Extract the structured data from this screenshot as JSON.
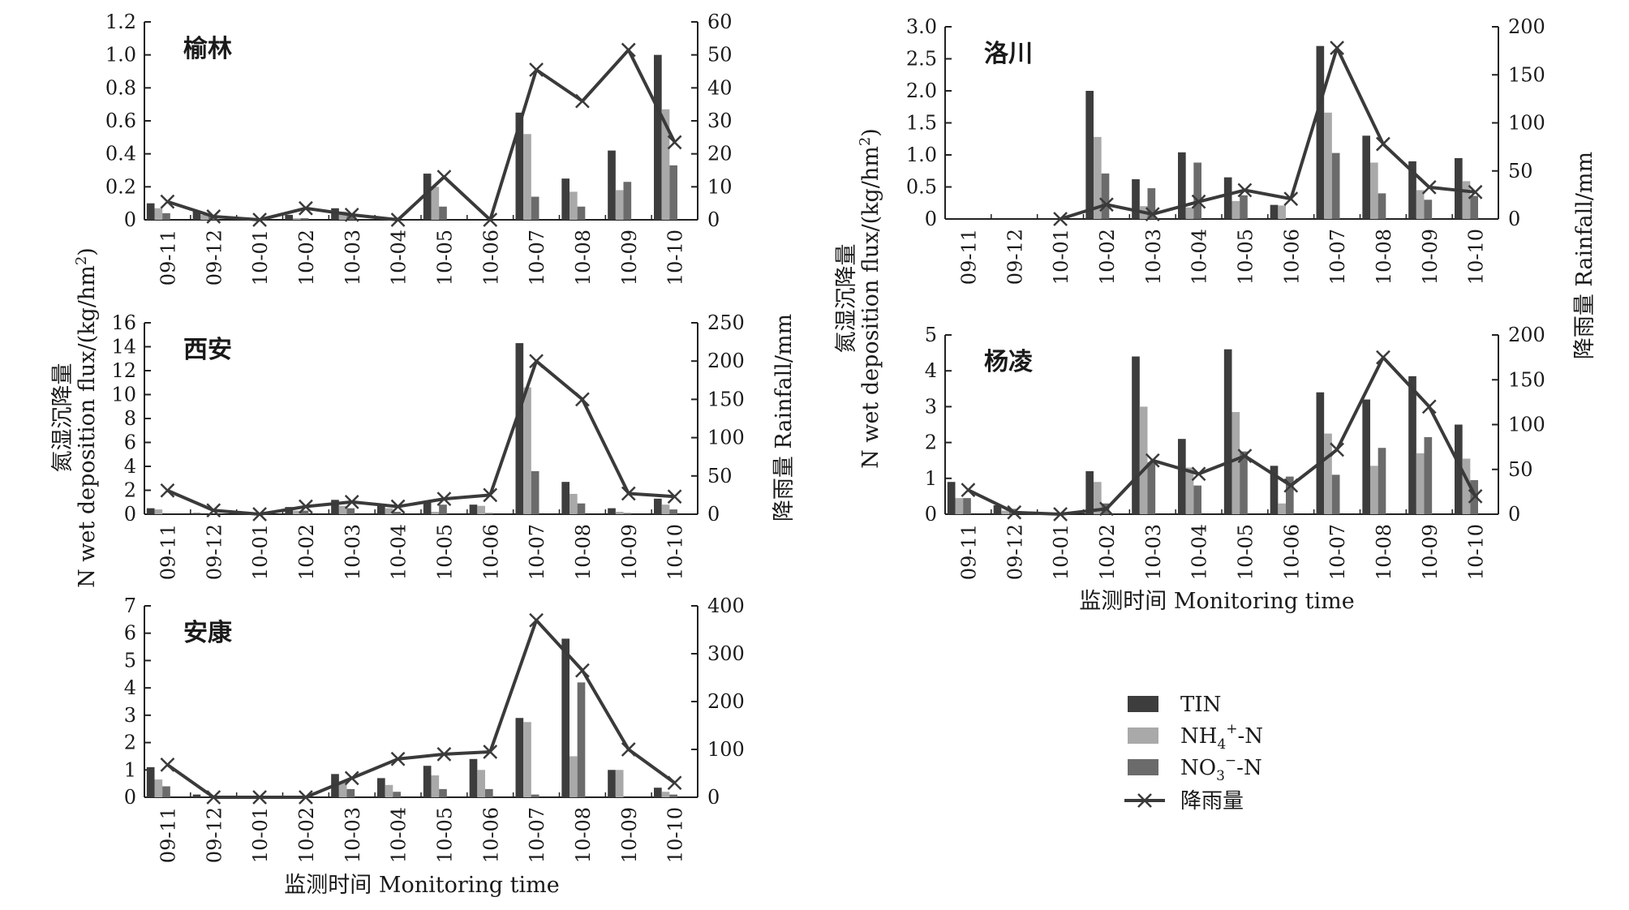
{
  "chart_data": {
    "type": "bar",
    "categories": [
      "09-11",
      "09-12",
      "10-01",
      "10-02",
      "10-03",
      "10-04",
      "10-05",
      "10-06",
      "10-07",
      "10-08",
      "10-09",
      "10-10"
    ],
    "series_names": [
      "TIN",
      "NH4+-N",
      "NO3−-N",
      "降雨量"
    ],
    "colors": {
      "TIN": "#3d3d3d",
      "NH4": "#a9a9a9",
      "NO3": "#6b6b6b",
      "rain": "#3a3a3a"
    },
    "xlabel": "监测时间 Monitoring time",
    "ylabel_left_cn": "氮湿沉降量",
    "ylabel_left_en": "N wet deposition flux/(kg/hm",
    "ylabel_left_sup": "2",
    "ylabel_left_close": ")",
    "ylabel_right": "降雨量 Rainfall/mm",
    "legend": {
      "tin": "TIN",
      "nh4_pre": "NH",
      "nh4_sub": "4",
      "nh4_sup": "+",
      "nh4_post": "-N",
      "no3_pre": "NO",
      "no3_sub": "3",
      "no3_sup": "−",
      "no3_post": "-N",
      "rain": "降雨量"
    },
    "charts": [
      {
        "id": "yulin",
        "title": "榆林",
        "left_axis": {
          "min": 0,
          "max": 1.2,
          "ticks": [
            "0",
            "0.2",
            "0.4",
            "0.6",
            "0.8",
            "1.0",
            "1.2"
          ]
        },
        "right_axis": {
          "min": 0,
          "max": 60,
          "ticks": [
            "0",
            "10",
            "20",
            "30",
            "40",
            "50",
            "60"
          ]
        },
        "series": [
          {
            "name": "TIN",
            "values": [
              0.1,
              0.05,
              0,
              0.03,
              0.07,
              0,
              0.28,
              0,
              0.65,
              0.25,
              0.42,
              1.0
            ]
          },
          {
            "name": "NH4+-N",
            "values": [
              0.07,
              0.03,
              0,
              0.01,
              0.05,
              0,
              0.2,
              0,
              0.52,
              0.17,
              0.18,
              0.67
            ]
          },
          {
            "name": "NO3−-N",
            "values": [
              0.04,
              0.03,
              0,
              0.01,
              0.03,
              0,
              0.08,
              0,
              0.14,
              0.08,
              0.23,
              0.33
            ]
          },
          {
            "name": "降雨量",
            "values": [
              5.5,
              1,
              0,
              3.5,
              1.5,
              0,
              13,
              0,
              45.5,
              36,
              51.5,
              23.5
            ]
          }
        ]
      },
      {
        "id": "luochuan",
        "title": "洛川",
        "left_axis": {
          "min": 0,
          "max": 3.0,
          "ticks": [
            "0",
            "0.5",
            "1.0",
            "1.5",
            "2.0",
            "2.5",
            "3.0"
          ]
        },
        "right_axis": {
          "min": 0,
          "max": 200,
          "ticks": [
            "0",
            "50",
            "100",
            "150",
            "200"
          ]
        },
        "series": [
          {
            "name": "TIN",
            "values": [
              null,
              null,
              null,
              2.0,
              0.62,
              1.04,
              0.65,
              0.22,
              2.7,
              1.3,
              0.9,
              0.95
            ]
          },
          {
            "name": "NH4+-N",
            "values": [
              null,
              null,
              null,
              1.28,
              0.2,
              0.18,
              0.28,
              0.21,
              1.66,
              0.88,
              0.45,
              0.59
            ]
          },
          {
            "name": "NO3−-N",
            "values": [
              null,
              null,
              null,
              0.71,
              0.48,
              0.88,
              0.37,
              0,
              1.03,
              0.4,
              0.3,
              0.36
            ]
          },
          {
            "name": "降雨量",
            "values": [
              null,
              null,
              0,
              15,
              5,
              18,
              30,
              21,
              178,
              78,
              33,
              28
            ]
          }
        ]
      },
      {
        "id": "xian",
        "title": "西安",
        "left_axis": {
          "min": 0,
          "max": 16,
          "ticks": [
            "0",
            "2",
            "4",
            "6",
            "8",
            "10",
            "12",
            "14",
            "16"
          ]
        },
        "right_axis": {
          "min": 0,
          "max": 250,
          "ticks": [
            "0",
            "50",
            "100",
            "150",
            "200",
            "250"
          ]
        },
        "series": [
          {
            "name": "TIN",
            "values": [
              0.5,
              0.1,
              0,
              0.6,
              1.2,
              0.8,
              1.0,
              0.8,
              14.3,
              2.7,
              0.5,
              1.3
            ]
          },
          {
            "name": "NH4+-N",
            "values": [
              0.4,
              0,
              0,
              0.3,
              0.7,
              0.5,
              0.2,
              0.7,
              10.6,
              1.7,
              0.2,
              0.8
            ]
          },
          {
            "name": "NO3−-N",
            "values": [
              0,
              0,
              0,
              0.3,
              0.5,
              0.2,
              0.8,
              0.1,
              3.6,
              0.9,
              0.1,
              0.4
            ]
          },
          {
            "name": "降雨量",
            "values": [
              31,
              5,
              0,
              10,
              16,
              10,
              20,
              25,
              200,
              150,
              27,
              23
            ]
          }
        ]
      },
      {
        "id": "yangling",
        "title": "杨凌",
        "left_axis": {
          "min": 0,
          "max": 5,
          "ticks": [
            "0",
            "1",
            "2",
            "3",
            "4",
            "5"
          ]
        },
        "right_axis": {
          "min": 0,
          "max": 200,
          "ticks": [
            "0",
            "50",
            "100",
            "150",
            "200"
          ]
        },
        "series": [
          {
            "name": "TIN",
            "values": [
              0.9,
              0.25,
              0,
              1.2,
              4.4,
              2.1,
              4.6,
              1.35,
              3.4,
              3.2,
              3.85,
              2.5
            ]
          },
          {
            "name": "NH4+-N",
            "values": [
              0.45,
              0.1,
              0,
              0.9,
              3.0,
              1.3,
              2.85,
              0.3,
              2.25,
              1.35,
              1.7,
              1.55
            ]
          },
          {
            "name": "NO3−-N",
            "values": [
              0.45,
              0.15,
              0,
              0.3,
              1.45,
              0.8,
              1.75,
              1.05,
              1.1,
              1.85,
              2.15,
              0.95
            ]
          },
          {
            "name": "降雨量",
            "values": [
              27,
              2,
              0,
              6,
              60,
              45,
              65,
              32,
              72,
              175,
              120,
              20
            ]
          }
        ]
      },
      {
        "id": "ankang",
        "title": "安康",
        "left_axis": {
          "min": 0,
          "max": 7,
          "ticks": [
            "0",
            "1",
            "2",
            "3",
            "4",
            "5",
            "6",
            "7"
          ]
        },
        "right_axis": {
          "min": 0,
          "max": 400,
          "ticks": [
            "0",
            "100",
            "200",
            "300",
            "400"
          ]
        },
        "series": [
          {
            "name": "TIN",
            "values": [
              1.1,
              0.1,
              0,
              0,
              0.85,
              0.7,
              1.15,
              1.4,
              2.9,
              5.8,
              1.0,
              0.35
            ]
          },
          {
            "name": "NH4+-N",
            "values": [
              0.65,
              0,
              0,
              0,
              0.55,
              0.45,
              0.8,
              1.0,
              2.75,
              1.5,
              1.0,
              0.2
            ]
          },
          {
            "name": "NO3−-N",
            "values": [
              0.4,
              0,
              0,
              0,
              0.3,
              0.2,
              0.3,
              0.3,
              0.1,
              4.2,
              0,
              0.1
            ]
          },
          {
            "name": "降雨量",
            "values": [
              68,
              0,
              0,
              0,
              40,
              80,
              90,
              95,
              370,
              265,
              100,
              30
            ]
          }
        ]
      }
    ]
  }
}
